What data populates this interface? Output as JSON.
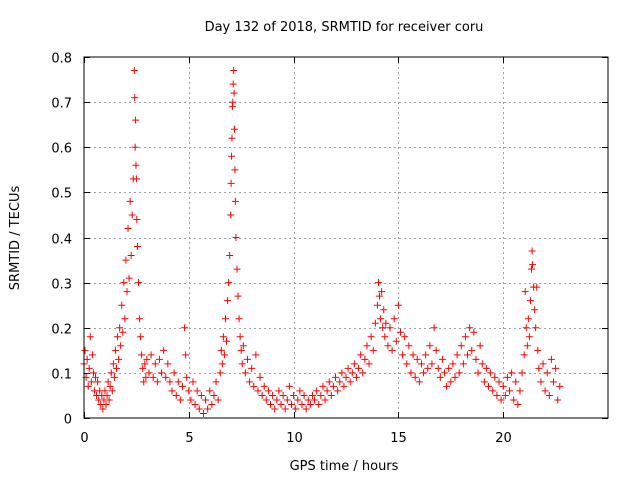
{
  "chart_data": {
    "type": "scatter",
    "title": "Day 132 of 2018, SRMTID for receiver coru",
    "xlabel": "GPS time / hours",
    "ylabel": "SRMTID / TECUs",
    "xlim": [
      0,
      25
    ],
    "ylim": [
      0,
      0.8
    ],
    "xticks": [
      0,
      5,
      10,
      15,
      20
    ],
    "yticks": [
      0,
      0.1,
      0.2,
      0.3,
      0.4,
      0.5,
      0.6,
      0.7,
      0.8
    ],
    "xtick_labels": [
      "0",
      "5",
      "10",
      "15",
      "20"
    ],
    "ytick_labels": [
      "0",
      "0.1",
      "0.2",
      "0.3",
      "0.4",
      "0.5",
      "0.6",
      "0.7",
      "0.8"
    ],
    "grid": true,
    "marker": "+",
    "color": "#ff0000",
    "series": [
      {
        "name": "SRMTID",
        "points": [
          [
            0.0,
            0.12
          ],
          [
            0.05,
            0.15
          ],
          [
            0.1,
            0.09
          ],
          [
            0.15,
            0.13
          ],
          [
            0.2,
            0.07
          ],
          [
            0.25,
            0.11
          ],
          [
            0.3,
            0.18
          ],
          [
            0.35,
            0.08
          ],
          [
            0.4,
            0.14
          ],
          [
            0.45,
            0.1
          ],
          [
            0.5,
            0.06
          ],
          [
            0.55,
            0.09
          ],
          [
            0.6,
            0.05
          ],
          [
            0.65,
            0.08
          ],
          [
            0.7,
            0.04
          ],
          [
            0.75,
            0.06
          ],
          [
            0.8,
            0.03
          ],
          [
            0.85,
            0.05
          ],
          [
            0.9,
            0.02
          ],
          [
            0.95,
            0.04
          ],
          [
            1.0,
            0.06
          ],
          [
            1.05,
            0.03
          ],
          [
            1.1,
            0.05
          ],
          [
            1.15,
            0.08
          ],
          [
            1.2,
            0.04
          ],
          [
            1.25,
            0.07
          ],
          [
            1.3,
            0.1
          ],
          [
            1.35,
            0.06
          ],
          [
            1.4,
            0.12
          ],
          [
            1.45,
            0.09
          ],
          [
            1.5,
            0.15
          ],
          [
            1.55,
            0.11
          ],
          [
            1.6,
            0.18
          ],
          [
            1.65,
            0.13
          ],
          [
            1.7,
            0.2
          ],
          [
            1.75,
            0.16
          ],
          [
            1.8,
            0.25
          ],
          [
            1.85,
            0.19
          ],
          [
            1.9,
            0.3
          ],
          [
            1.95,
            0.22
          ],
          [
            2.0,
            0.35
          ],
          [
            2.05,
            0.28
          ],
          [
            2.1,
            0.42
          ],
          [
            2.15,
            0.31
          ],
          [
            2.2,
            0.48
          ],
          [
            2.25,
            0.36
          ],
          [
            2.3,
            0.45
          ],
          [
            2.35,
            0.53
          ],
          [
            2.4,
            0.77
          ],
          [
            2.42,
            0.71
          ],
          [
            2.44,
            0.6
          ],
          [
            2.46,
            0.66
          ],
          [
            2.48,
            0.56
          ],
          [
            2.5,
            0.53
          ],
          [
            2.52,
            0.44
          ],
          [
            2.55,
            0.38
          ],
          [
            2.6,
            0.3
          ],
          [
            2.65,
            0.22
          ],
          [
            2.7,
            0.18
          ],
          [
            2.75,
            0.14
          ],
          [
            2.8,
            0.11
          ],
          [
            2.85,
            0.08
          ],
          [
            2.9,
            0.12
          ],
          [
            2.95,
            0.09
          ],
          [
            3.0,
            0.13
          ],
          [
            3.1,
            0.1
          ],
          [
            3.2,
            0.14
          ],
          [
            3.3,
            0.09
          ],
          [
            3.4,
            0.12
          ],
          [
            3.5,
            0.08
          ],
          [
            3.6,
            0.13
          ],
          [
            3.7,
            0.1
          ],
          [
            3.8,
            0.15
          ],
          [
            3.9,
            0.09
          ],
          [
            4.0,
            0.12
          ],
          [
            4.1,
            0.08
          ],
          [
            4.2,
            0.06
          ],
          [
            4.3,
            0.1
          ],
          [
            4.4,
            0.05
          ],
          [
            4.5,
            0.08
          ],
          [
            4.6,
            0.04
          ],
          [
            4.7,
            0.07
          ],
          [
            4.8,
            0.2
          ],
          [
            4.85,
            0.14
          ],
          [
            4.9,
            0.09
          ],
          [
            5.0,
            0.06
          ],
          [
            5.1,
            0.04
          ],
          [
            5.2,
            0.08
          ],
          [
            5.3,
            0.03
          ],
          [
            5.4,
            0.06
          ],
          [
            5.5,
            0.02
          ],
          [
            5.6,
            0.05
          ],
          [
            5.7,
            0.01
          ],
          [
            5.8,
            0.04
          ],
          [
            5.9,
            0.02
          ],
          [
            6.0,
            0.06
          ],
          [
            6.1,
            0.03
          ],
          [
            6.2,
            0.05
          ],
          [
            6.3,
            0.08
          ],
          [
            6.4,
            0.04
          ],
          [
            6.5,
            0.1
          ],
          [
            6.55,
            0.15
          ],
          [
            6.6,
            0.12
          ],
          [
            6.65,
            0.18
          ],
          [
            6.7,
            0.14
          ],
          [
            6.75,
            0.22
          ],
          [
            6.8,
            0.17
          ],
          [
            6.85,
            0.26
          ],
          [
            6.9,
            0.3
          ],
          [
            6.95,
            0.36
          ],
          [
            7.0,
            0.45
          ],
          [
            7.02,
            0.52
          ],
          [
            7.04,
            0.58
          ],
          [
            7.06,
            0.62
          ],
          [
            7.08,
            0.69
          ],
          [
            7.1,
            0.7
          ],
          [
            7.12,
            0.74
          ],
          [
            7.14,
            0.77
          ],
          [
            7.16,
            0.72
          ],
          [
            7.18,
            0.64
          ],
          [
            7.2,
            0.55
          ],
          [
            7.22,
            0.48
          ],
          [
            7.25,
            0.4
          ],
          [
            7.3,
            0.33
          ],
          [
            7.35,
            0.27
          ],
          [
            7.4,
            0.22
          ],
          [
            7.45,
            0.18
          ],
          [
            7.5,
            0.15
          ],
          [
            7.55,
            0.12
          ],
          [
            7.6,
            0.16
          ],
          [
            7.7,
            0.1
          ],
          [
            7.8,
            0.13
          ],
          [
            7.9,
            0.08
          ],
          [
            8.0,
            0.11
          ],
          [
            8.1,
            0.07
          ],
          [
            8.2,
            0.14
          ],
          [
            8.3,
            0.06
          ],
          [
            8.4,
            0.09
          ],
          [
            8.5,
            0.05
          ],
          [
            8.6,
            0.07
          ],
          [
            8.7,
            0.04
          ],
          [
            8.8,
            0.06
          ],
          [
            8.9,
            0.03
          ],
          [
            9.0,
            0.05
          ],
          [
            9.1,
            0.02
          ],
          [
            9.2,
            0.04
          ],
          [
            9.3,
            0.06
          ],
          [
            9.4,
            0.03
          ],
          [
            9.5,
            0.05
          ],
          [
            9.6,
            0.02
          ],
          [
            9.7,
            0.04
          ],
          [
            9.8,
            0.07
          ],
          [
            9.9,
            0.03
          ],
          [
            10.0,
            0.05
          ],
          [
            10.1,
            0.02
          ],
          [
            10.2,
            0.04
          ],
          [
            10.3,
            0.06
          ],
          [
            10.4,
            0.03
          ],
          [
            10.5,
            0.05
          ],
          [
            10.6,
            0.02
          ],
          [
            10.7,
            0.04
          ],
          [
            10.8,
            0.03
          ],
          [
            10.9,
            0.05
          ],
          [
            11.0,
            0.04
          ],
          [
            11.1,
            0.06
          ],
          [
            11.2,
            0.03
          ],
          [
            11.3,
            0.05
          ],
          [
            11.4,
            0.07
          ],
          [
            11.5,
            0.04
          ],
          [
            11.6,
            0.06
          ],
          [
            11.7,
            0.08
          ],
          [
            11.8,
            0.05
          ],
          [
            11.9,
            0.07
          ],
          [
            12.0,
            0.09
          ],
          [
            12.1,
            0.06
          ],
          [
            12.2,
            0.08
          ],
          [
            12.3,
            0.1
          ],
          [
            12.4,
            0.07
          ],
          [
            12.5,
            0.09
          ],
          [
            12.6,
            0.11
          ],
          [
            12.7,
            0.08
          ],
          [
            12.8,
            0.1
          ],
          [
            12.9,
            0.12
          ],
          [
            13.0,
            0.09
          ],
          [
            13.1,
            0.11
          ],
          [
            13.2,
            0.14
          ],
          [
            13.3,
            0.1
          ],
          [
            13.4,
            0.13
          ],
          [
            13.5,
            0.16
          ],
          [
            13.6,
            0.12
          ],
          [
            13.7,
            0.18
          ],
          [
            13.8,
            0.15
          ],
          [
            13.9,
            0.21
          ],
          [
            14.0,
            0.25
          ],
          [
            14.05,
            0.3
          ],
          [
            14.1,
            0.27
          ],
          [
            14.15,
            0.22
          ],
          [
            14.2,
            0.28
          ],
          [
            14.25,
            0.2
          ],
          [
            14.3,
            0.24
          ],
          [
            14.35,
            0.18
          ],
          [
            14.4,
            0.21
          ],
          [
            14.5,
            0.16
          ],
          [
            14.6,
            0.2
          ],
          [
            14.7,
            0.15
          ],
          [
            14.8,
            0.22
          ],
          [
            14.9,
            0.17
          ],
          [
            15.0,
            0.25
          ],
          [
            15.1,
            0.19
          ],
          [
            15.2,
            0.14
          ],
          [
            15.3,
            0.18
          ],
          [
            15.4,
            0.12
          ],
          [
            15.5,
            0.16
          ],
          [
            15.6,
            0.1
          ],
          [
            15.7,
            0.14
          ],
          [
            15.8,
            0.09
          ],
          [
            15.9,
            0.13
          ],
          [
            16.0,
            0.08
          ],
          [
            16.1,
            0.12
          ],
          [
            16.2,
            0.1
          ],
          [
            16.3,
            0.14
          ],
          [
            16.4,
            0.11
          ],
          [
            16.5,
            0.16
          ],
          [
            16.6,
            0.12
          ],
          [
            16.7,
            0.2
          ],
          [
            16.8,
            0.15
          ],
          [
            16.9,
            0.11
          ],
          [
            17.0,
            0.09
          ],
          [
            17.1,
            0.13
          ],
          [
            17.2,
            0.1
          ],
          [
            17.3,
            0.07
          ],
          [
            17.4,
            0.11
          ],
          [
            17.5,
            0.08
          ],
          [
            17.6,
            0.12
          ],
          [
            17.7,
            0.09
          ],
          [
            17.8,
            0.14
          ],
          [
            17.9,
            0.1
          ],
          [
            18.0,
            0.16
          ],
          [
            18.1,
            0.12
          ],
          [
            18.2,
            0.18
          ],
          [
            18.3,
            0.14
          ],
          [
            18.4,
            0.2
          ],
          [
            18.5,
            0.15
          ],
          [
            18.6,
            0.19
          ],
          [
            18.7,
            0.13
          ],
          [
            18.8,
            0.1
          ],
          [
            18.9,
            0.16
          ],
          [
            19.0,
            0.12
          ],
          [
            19.1,
            0.08
          ],
          [
            19.2,
            0.11
          ],
          [
            19.3,
            0.07
          ],
          [
            19.4,
            0.1
          ],
          [
            19.5,
            0.06
          ],
          [
            19.6,
            0.09
          ],
          [
            19.7,
            0.05
          ],
          [
            19.8,
            0.08
          ],
          [
            19.9,
            0.04
          ],
          [
            20.0,
            0.07
          ],
          [
            20.1,
            0.05
          ],
          [
            20.2,
            0.09
          ],
          [
            20.3,
            0.06
          ],
          [
            20.4,
            0.1
          ],
          [
            20.5,
            0.04
          ],
          [
            20.6,
            0.08
          ],
          [
            20.7,
            0.03
          ],
          [
            20.8,
            0.06
          ],
          [
            20.9,
            0.1
          ],
          [
            21.0,
            0.14
          ],
          [
            21.05,
            0.28
          ],
          [
            21.1,
            0.2
          ],
          [
            21.15,
            0.16
          ],
          [
            21.2,
            0.22
          ],
          [
            21.25,
            0.18
          ],
          [
            21.3,
            0.26
          ],
          [
            21.35,
            0.33
          ],
          [
            21.38,
            0.37
          ],
          [
            21.4,
            0.34
          ],
          [
            21.45,
            0.29
          ],
          [
            21.5,
            0.24
          ],
          [
            21.55,
            0.2
          ],
          [
            21.6,
            0.29
          ],
          [
            21.65,
            0.15
          ],
          [
            21.7,
            0.11
          ],
          [
            21.8,
            0.08
          ],
          [
            21.9,
            0.12
          ],
          [
            22.0,
            0.06
          ],
          [
            22.1,
            0.1
          ],
          [
            22.2,
            0.05
          ],
          [
            22.3,
            0.13
          ],
          [
            22.4,
            0.08
          ],
          [
            22.5,
            0.11
          ],
          [
            22.6,
            0.04
          ],
          [
            22.7,
            0.07
          ]
        ]
      }
    ]
  }
}
